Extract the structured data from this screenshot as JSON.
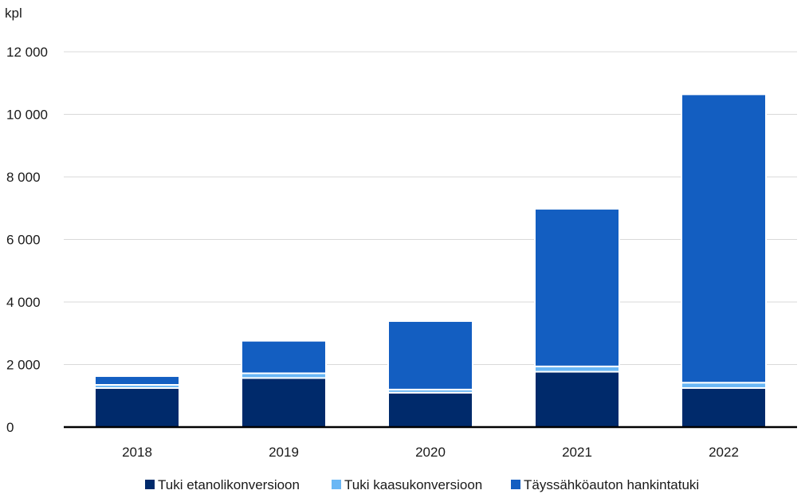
{
  "chart_data": {
    "type": "bar",
    "stacked": true,
    "unit_label": "kpl",
    "categories": [
      "2018",
      "2019",
      "2020",
      "2021",
      "2022"
    ],
    "series": [
      {
        "name": "Tuki etanolikonversioon",
        "color": "#002a6b",
        "values": [
          1250,
          1570,
          1100,
          1770,
          1250
        ]
      },
      {
        "name": "Tuki kaasukonversioon",
        "color": "#6ab7f5",
        "values": [
          100,
          150,
          100,
          170,
          170
        ]
      },
      {
        "name": "Täyssähköauton hankintatuki",
        "color": "#135ec1",
        "values": [
          280,
          1040,
          2190,
          5040,
          9220
        ]
      }
    ],
    "ylim": [
      0,
      12000
    ],
    "yticks": [
      0,
      2000,
      4000,
      6000,
      8000,
      10000,
      12000
    ],
    "ytick_labels": [
      "0",
      "2 000",
      "4 000",
      "6 000",
      "8 000",
      "10 000",
      "12 000"
    ],
    "grid": true,
    "legend_position": "bottom"
  }
}
